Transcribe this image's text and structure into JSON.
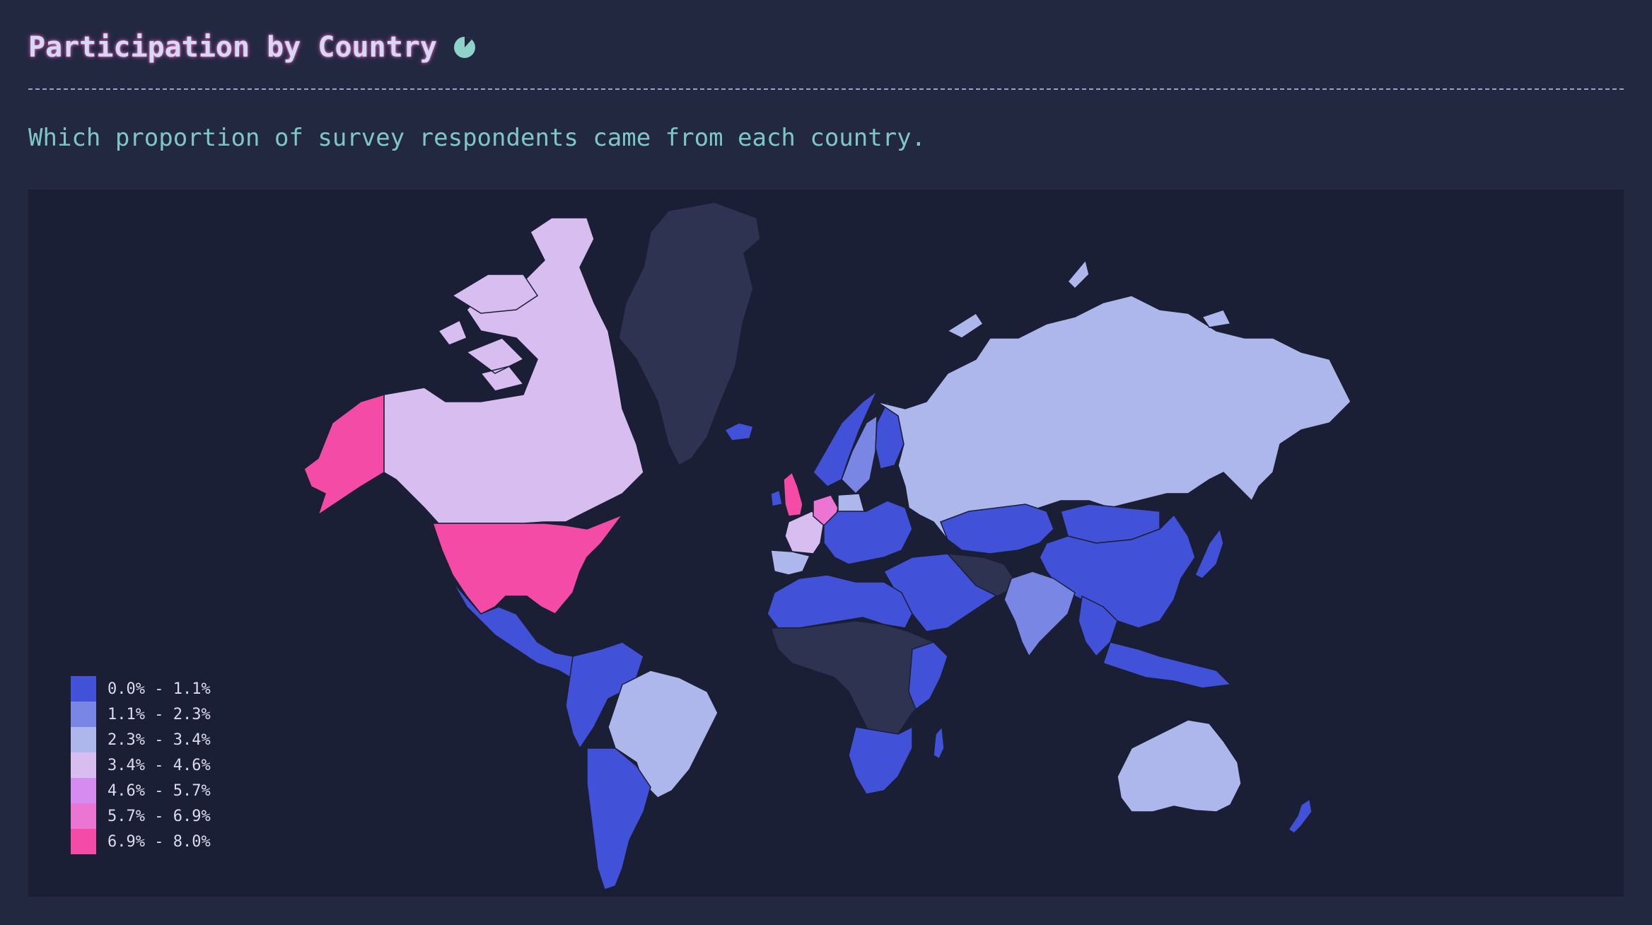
{
  "header": {
    "title": "Participation by Country",
    "subtitle": "Which proportion of survey respondents came from each country."
  },
  "colors": {
    "background": "#232841",
    "panel": "#1b1f35",
    "no_data": "#2d3350",
    "accent_glow": "#e969c5"
  },
  "legend": [
    {
      "label": "0.0% - 1.1%",
      "color": "#4152d9"
    },
    {
      "label": "1.1% - 2.3%",
      "color": "#7a86e3"
    },
    {
      "label": "2.3% - 3.4%",
      "color": "#aeb7ec"
    },
    {
      "label": "3.4% - 4.6%",
      "color": "#d7bdf0"
    },
    {
      "label": "4.6% - 5.7%",
      "color": "#d58bf0"
    },
    {
      "label": "5.7% - 6.9%",
      "color": "#ec74d2"
    },
    {
      "label": "6.9% - 8.0%",
      "color": "#f44ba7"
    }
  ],
  "chart_data": {
    "type": "choropleth",
    "title": "Participation by Country",
    "unit": "% of respondents",
    "bins": [
      "0.0% - 1.1%",
      "1.1% - 2.3%",
      "2.3% - 3.4%",
      "3.4% - 4.6%",
      "4.6% - 5.7%",
      "5.7% - 6.9%",
      "6.9% - 8.0%"
    ],
    "countries": [
      {
        "name": "United States",
        "bin": 6
      },
      {
        "name": "Alaska (US)",
        "bin": 6
      },
      {
        "name": "United Kingdom",
        "bin": 6
      },
      {
        "name": "Germany",
        "bin": 5
      },
      {
        "name": "Canada",
        "bin": 3
      },
      {
        "name": "France",
        "bin": 3
      },
      {
        "name": "Russia",
        "bin": 2
      },
      {
        "name": "Brazil",
        "bin": 2
      },
      {
        "name": "Australia",
        "bin": 2
      },
      {
        "name": "Spain",
        "bin": 2
      },
      {
        "name": "Poland",
        "bin": 2
      },
      {
        "name": "India",
        "bin": 1
      },
      {
        "name": "Sweden",
        "bin": 1
      },
      {
        "name": "Mexico",
        "bin": 0
      },
      {
        "name": "China",
        "bin": 0
      },
      {
        "name": "Argentina",
        "bin": 0
      },
      {
        "name": "Japan",
        "bin": 0
      },
      {
        "name": "Mongolia",
        "bin": 0
      },
      {
        "name": "Kazakhstan",
        "bin": 0
      },
      {
        "name": "Indonesia",
        "bin": 0
      },
      {
        "name": "New Zealand",
        "bin": 0
      },
      {
        "name": "Norway",
        "bin": 0
      },
      {
        "name": "Finland",
        "bin": 0
      },
      {
        "name": "Iceland",
        "bin": 0
      },
      {
        "name": "Greenland",
        "bin": null
      }
    ]
  }
}
